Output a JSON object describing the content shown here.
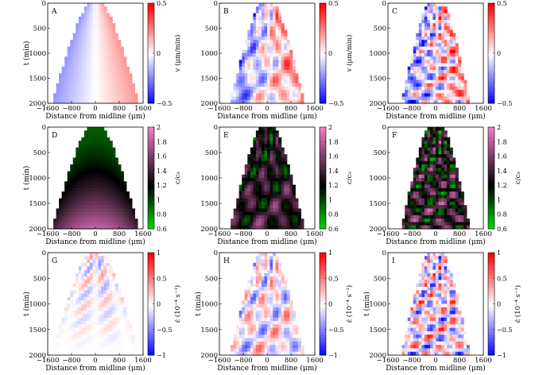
{
  "figure": {
    "colors": {
      "blue": "#0000ff",
      "white": "#ffffff",
      "red": "#ff0000",
      "green": "#00e000",
      "black": "#000000",
      "pink": "#f07ac8"
    }
  },
  "chart_data": [
    {
      "type": "heatmap",
      "panel": "A",
      "xlabel": "Distance from midline (μm)",
      "ylabel": "t (min)",
      "colorbar_label": "v (μm/min)",
      "xlim": [
        -1600,
        1600
      ],
      "ylim": [
        2000,
        0
      ],
      "xticks": [
        -1600,
        -800,
        0,
        800,
        1600
      ],
      "yticks": [
        0,
        500,
        1000,
        1500,
        2000
      ],
      "cbar_range": [
        -0.5,
        0.5
      ],
      "cbar_ticks": [
        "0.5",
        "0",
        "−0.5"
      ],
      "colormap": "blue-white-red",
      "pattern": "smooth"
    },
    {
      "type": "heatmap",
      "panel": "B",
      "xlabel": "Distance from midline (μm)",
      "ylabel": "",
      "colorbar_label": "v (μm/min)",
      "xlim": [
        -1600,
        1600
      ],
      "ylim": [
        2000,
        0
      ],
      "xticks": [
        -1600,
        -800,
        0,
        800,
        1600
      ],
      "yticks": [
        0,
        500,
        1000,
        1500,
        2000
      ],
      "cbar_range": [
        -0.5,
        0.5
      ],
      "cbar_ticks": [
        "0.5",
        "0",
        "−0.5"
      ],
      "colormap": "blue-white-red",
      "pattern": "waves"
    },
    {
      "type": "heatmap",
      "panel": "C",
      "xlabel": "Distance from midline (μm)",
      "ylabel": "",
      "colorbar_label": "",
      "xlim": [
        -1600,
        1600
      ],
      "ylim": [
        2000,
        0
      ],
      "xticks": [
        -1600,
        -800,
        0,
        800,
        1600
      ],
      "yticks": [
        0,
        500,
        1000,
        1500,
        2000
      ],
      "cbar_range": [
        -0.5,
        0.5
      ],
      "cbar_ticks": [
        "0.5",
        "0",
        "−0.5"
      ],
      "colormap": "blue-white-red",
      "pattern": "zigzag"
    },
    {
      "type": "heatmap",
      "panel": "D",
      "xlabel": "Distance from midline (μm)",
      "ylabel": "t (min)",
      "colorbar_label": "c/c₀",
      "xlim": [
        -1600,
        1600
      ],
      "ylim": [
        2000,
        0
      ],
      "xticks": [
        -1600,
        -800,
        0,
        800,
        1600
      ],
      "yticks": [
        0,
        500,
        1000,
        1500,
        2000
      ],
      "cbar_range": [
        0.6,
        2
      ],
      "cbar_ticks": [
        "2",
        "1.8",
        "1.6",
        "1.4",
        "1.2",
        "1",
        "0.8",
        "0.6"
      ],
      "colormap": "green-black-pink",
      "pattern": "smooth"
    },
    {
      "type": "heatmap",
      "panel": "E",
      "xlabel": "Distance from midline (μm)",
      "ylabel": "",
      "colorbar_label": "c/c₀",
      "xlim": [
        -1600,
        1600
      ],
      "ylim": [
        2000,
        0
      ],
      "xticks": [
        -1600,
        -800,
        0,
        800,
        1600
      ],
      "yticks": [
        0,
        500,
        1000,
        1500,
        2000
      ],
      "cbar_range": [
        0.6,
        2
      ],
      "cbar_ticks": [
        "2",
        "1.8",
        "1.6",
        "1.4",
        "1.2",
        "1",
        "0.8",
        "0.6"
      ],
      "colormap": "green-black-pink",
      "pattern": "waves"
    },
    {
      "type": "heatmap",
      "panel": "F",
      "xlabel": "Distance from midline (μm)",
      "ylabel": "",
      "colorbar_label": "c/c₀",
      "xlim": [
        -1600,
        1600
      ],
      "ylim": [
        2000,
        0
      ],
      "xticks": [
        -1600,
        -800,
        0,
        800,
        1600
      ],
      "yticks": [
        0,
        500,
        1000,
        1500,
        2000
      ],
      "cbar_range": [
        0.6,
        2
      ],
      "cbar_ticks": [
        "2",
        "1.8",
        "1.6",
        "1.4",
        "1.2",
        "1",
        "0.8",
        "0.6"
      ],
      "colormap": "green-black-pink",
      "pattern": "zigzag"
    },
    {
      "type": "heatmap",
      "panel": "G",
      "xlabel": "Distance from midline (μm)",
      "ylabel": "t (min)",
      "colorbar_label": "ε̇ (10⁻⁴ s⁻¹)",
      "xlim": [
        -1600,
        1600
      ],
      "ylim": [
        2000,
        0
      ],
      "xticks": [
        -1600,
        -800,
        0,
        800,
        1600
      ],
      "yticks": [
        0,
        500,
        1000,
        1500,
        2000
      ],
      "cbar_range": [
        -1,
        1
      ],
      "cbar_ticks": [
        "1",
        "0.5",
        "0",
        "−0.5",
        "−1"
      ],
      "colormap": "blue-white-red",
      "pattern": "smooth"
    },
    {
      "type": "heatmap",
      "panel": "H",
      "xlabel": "Distance from midline (μm)",
      "ylabel": "t (min)",
      "colorbar_label": "ε̇ (10⁻⁴ s⁻¹)",
      "xlim": [
        -1600,
        1600
      ],
      "ylim": [
        2000,
        0
      ],
      "xticks": [
        -1600,
        -800,
        0,
        800,
        1600
      ],
      "yticks": [
        0,
        500,
        1000,
        1500,
        2000
      ],
      "cbar_range": [
        -1,
        1
      ],
      "cbar_ticks": [
        "1",
        "0.5",
        "0",
        "−0.5",
        "−1"
      ],
      "colormap": "blue-white-red",
      "pattern": "waves"
    },
    {
      "type": "heatmap",
      "panel": "I",
      "xlabel": "Distance from midline (μm)",
      "ylabel": "t (min)",
      "colorbar_label": "ε̇ (10⁻⁴ s⁻¹)",
      "xlim": [
        -1600,
        1600
      ],
      "ylim": [
        2000,
        0
      ],
      "xticks": [
        -1600,
        -800,
        0,
        800,
        1600
      ],
      "yticks": [
        0,
        500,
        1000,
        1500,
        2000
      ],
      "cbar_range": [
        -1,
        1
      ],
      "cbar_ticks": [
        "1",
        "0.5",
        "0",
        "−0.5",
        "−1"
      ],
      "colormap": "blue-white-red",
      "pattern": "zigzag"
    }
  ]
}
